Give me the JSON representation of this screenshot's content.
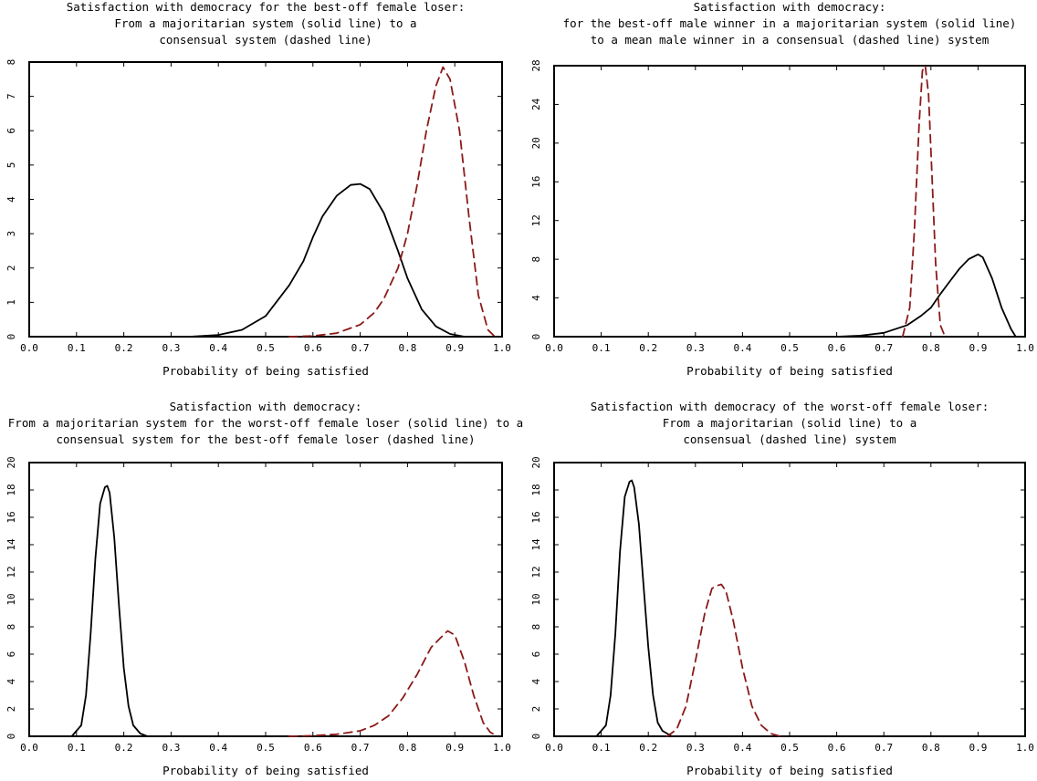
{
  "chart_data": [
    {
      "type": "line",
      "title_lines": [
        "Satisfaction with democracy for the best-off female loser:",
        "From a majoritarian system (solid line) to a",
        "consensual system (dashed line)"
      ],
      "xlabel": "Probability of being satisfied",
      "ylabel": "",
      "xlim": [
        0,
        1
      ],
      "ylim": [
        0,
        8
      ],
      "x_ticks": [
        "0.0",
        "0.1",
        "0.2",
        "0.3",
        "0.4",
        "0.5",
        "0.6",
        "0.7",
        "0.8",
        "0.9",
        "1.0"
      ],
      "y_ticks": [
        "0",
        "1",
        "2",
        "3",
        "4",
        "5",
        "6",
        "7",
        "8"
      ],
      "series": [
        {
          "style": "solid",
          "color": "#000000",
          "x": [
            0.34,
            0.4,
            0.45,
            0.5,
            0.55,
            0.58,
            0.6,
            0.62,
            0.65,
            0.68,
            0.7,
            0.72,
            0.75,
            0.78,
            0.8,
            0.83,
            0.86,
            0.89,
            0.92
          ],
          "y": [
            0.0,
            0.05,
            0.2,
            0.6,
            1.5,
            2.2,
            2.9,
            3.5,
            4.1,
            4.42,
            4.45,
            4.3,
            3.6,
            2.5,
            1.7,
            0.8,
            0.3,
            0.08,
            0.0
          ]
        },
        {
          "style": "dashed",
          "color": "#8b1a1a",
          "x": [
            0.55,
            0.6,
            0.65,
            0.7,
            0.73,
            0.75,
            0.78,
            0.8,
            0.82,
            0.84,
            0.86,
            0.875,
            0.89,
            0.91,
            0.93,
            0.95,
            0.97,
            0.985
          ],
          "y": [
            0.0,
            0.02,
            0.1,
            0.35,
            0.7,
            1.1,
            2.0,
            3.0,
            4.4,
            6.0,
            7.3,
            7.85,
            7.5,
            6.0,
            3.5,
            1.2,
            0.2,
            0.0
          ]
        }
      ]
    },
    {
      "type": "line",
      "title_lines": [
        "Satisfaction with democracy:",
        "for the best-off male winner in a majoritarian system (solid line)",
        "to a mean male winner in a consensual (dashed line) system"
      ],
      "xlabel": "Probability of being satisfied",
      "ylabel": "",
      "xlim": [
        0,
        1
      ],
      "ylim": [
        0,
        28
      ],
      "x_ticks": [
        "0.0",
        "0.1",
        "0.2",
        "0.3",
        "0.4",
        "0.5",
        "0.6",
        "0.7",
        "0.8",
        "0.9",
        "1.0"
      ],
      "y_ticks": [
        "0",
        "4",
        "8",
        "12",
        "16",
        "20",
        "24",
        "28"
      ],
      "series": [
        {
          "style": "solid",
          "color": "#000000",
          "x": [
            0.6,
            0.65,
            0.7,
            0.75,
            0.78,
            0.8,
            0.82,
            0.84,
            0.86,
            0.88,
            0.9,
            0.91,
            0.93,
            0.95,
            0.97,
            0.98
          ],
          "y": [
            0.0,
            0.1,
            0.4,
            1.2,
            2.2,
            3.0,
            4.4,
            5.7,
            7.0,
            8.0,
            8.5,
            8.2,
            6.0,
            3.0,
            0.8,
            0.0
          ]
        },
        {
          "style": "dashed",
          "color": "#8b1a1a",
          "x": [
            0.74,
            0.755,
            0.765,
            0.775,
            0.782,
            0.788,
            0.795,
            0.802,
            0.81,
            0.82,
            0.83
          ],
          "y": [
            0.0,
            3.0,
            11.0,
            22.0,
            27.5,
            28.0,
            25.0,
            17.0,
            7.5,
            1.2,
            0.0
          ]
        }
      ]
    },
    {
      "type": "line",
      "title_lines": [
        "Satisfaction with democracy:",
        "From a majoritarian system for the worst-off female loser (solid line) to a",
        "consensual system for the best-off female loser (dashed line)"
      ],
      "xlabel": "Probability of being satisfied",
      "ylabel": "",
      "xlim": [
        0,
        1
      ],
      "ylim": [
        0,
        20
      ],
      "x_ticks": [
        "0.0",
        "0.1",
        "0.2",
        "0.3",
        "0.4",
        "0.5",
        "0.6",
        "0.7",
        "0.8",
        "0.9",
        "1.0"
      ],
      "y_ticks": [
        "0",
        "2",
        "4",
        "6",
        "8",
        "10",
        "12",
        "14",
        "16",
        "18",
        "20"
      ],
      "series": [
        {
          "style": "solid",
          "color": "#000000",
          "x": [
            0.09,
            0.11,
            0.12,
            0.13,
            0.14,
            0.15,
            0.16,
            0.165,
            0.17,
            0.18,
            0.19,
            0.2,
            0.21,
            0.22,
            0.235,
            0.25
          ],
          "y": [
            0.0,
            0.8,
            3.0,
            7.5,
            13.0,
            17.0,
            18.2,
            18.3,
            17.8,
            14.5,
            9.5,
            5.0,
            2.2,
            0.8,
            0.2,
            0.0
          ]
        },
        {
          "style": "dashed",
          "color": "#8b1a1a",
          "x": [
            0.55,
            0.6,
            0.65,
            0.7,
            0.73,
            0.76,
            0.79,
            0.82,
            0.85,
            0.87,
            0.885,
            0.9,
            0.92,
            0.94,
            0.96,
            0.975,
            0.99
          ],
          "y": [
            0.0,
            0.05,
            0.15,
            0.4,
            0.8,
            1.5,
            2.8,
            4.5,
            6.5,
            7.2,
            7.7,
            7.4,
            5.5,
            3.0,
            1.0,
            0.3,
            0.0
          ]
        }
      ]
    },
    {
      "type": "line",
      "title_lines": [
        "Satisfaction with democracy of the worst-off female loser:",
        "From a majoritarian (solid line) to a",
        "consensual (dashed line) system"
      ],
      "xlabel": "Probability of being satisfied",
      "ylabel": "",
      "xlim": [
        0,
        1
      ],
      "ylim": [
        0,
        20
      ],
      "x_ticks": [
        "0.0",
        "0.1",
        "0.2",
        "0.3",
        "0.4",
        "0.5",
        "0.6",
        "0.7",
        "0.8",
        "0.9",
        "1.0"
      ],
      "y_ticks": [
        "0",
        "2",
        "4",
        "6",
        "8",
        "10",
        "12",
        "14",
        "16",
        "18",
        "20"
      ],
      "series": [
        {
          "style": "solid",
          "color": "#000000",
          "x": [
            0.09,
            0.11,
            0.12,
            0.13,
            0.14,
            0.15,
            0.16,
            0.165,
            0.17,
            0.18,
            0.19,
            0.2,
            0.21,
            0.22,
            0.23,
            0.25
          ],
          "y": [
            0.0,
            0.8,
            3.0,
            7.5,
            13.5,
            17.5,
            18.6,
            18.7,
            18.2,
            15.5,
            11.0,
            6.5,
            3.0,
            1.0,
            0.4,
            0.0
          ]
        },
        {
          "style": "dashed",
          "color": "#8b1a1a",
          "x": [
            0.24,
            0.26,
            0.28,
            0.3,
            0.32,
            0.335,
            0.345,
            0.355,
            0.365,
            0.38,
            0.4,
            0.42,
            0.44,
            0.46,
            0.48
          ],
          "y": [
            0.0,
            0.5,
            2.2,
            5.5,
            9.0,
            10.8,
            11.0,
            11.1,
            10.6,
            8.5,
            5.0,
            2.2,
            0.8,
            0.2,
            0.0
          ]
        }
      ]
    }
  ]
}
